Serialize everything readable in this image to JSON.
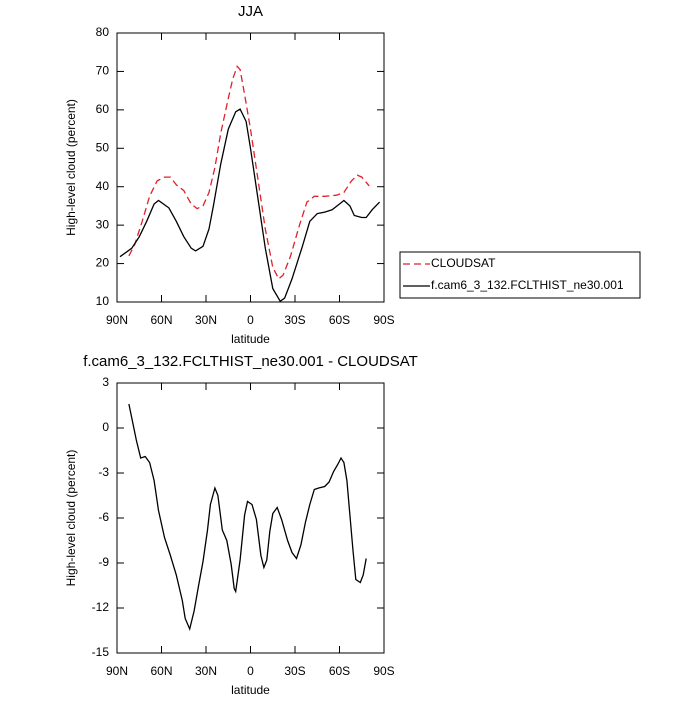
{
  "chart_data": [
    {
      "type": "line",
      "title": "JJA",
      "xlabel": "latitude",
      "ylabel": "High-level cloud (percent)",
      "xlim": [
        90,
        -90
      ],
      "xticks": [
        {
          "value": 90,
          "label": "90N"
        },
        {
          "value": 60,
          "label": "60N"
        },
        {
          "value": 30,
          "label": "30N"
        },
        0,
        {
          "value": -30,
          "label": "30S"
        },
        {
          "value": -60,
          "label": "60S"
        },
        {
          "value": -90,
          "label": "90S"
        }
      ],
      "ylim": [
        10,
        80
      ],
      "yticks": [
        10,
        20,
        30,
        40,
        50,
        60,
        70,
        80
      ],
      "legend": "right",
      "series": [
        {
          "name": "CLOUDSAT",
          "color": "#e0202a",
          "line_style": "dashed",
          "x": [
            82,
            78,
            73,
            68,
            63,
            58,
            54,
            50,
            45,
            40,
            36,
            32,
            28,
            24,
            20,
            15,
            12,
            9,
            7,
            4,
            0,
            -5,
            -10,
            -15,
            -19,
            -22,
            -27,
            -33,
            -38,
            -43,
            -50,
            -58,
            -63,
            -68,
            -72,
            -75,
            -80
          ],
          "values": [
            22,
            25,
            31,
            37.5,
            41.5,
            42.5,
            42.5,
            40.5,
            39,
            35.5,
            34.3,
            35,
            38.5,
            45,
            54,
            63,
            68,
            71.3,
            70.5,
            64,
            55,
            42,
            29,
            19,
            16,
            17,
            22,
            30,
            36,
            37.5,
            37.5,
            37.8,
            38.5,
            41.5,
            43,
            42.5,
            40.2
          ]
        },
        {
          "name": "f.cam6_3_132.FCLTHIST_ne30.001",
          "color": "#000000",
          "line_style": "solid",
          "x": [
            88,
            80,
            75,
            70,
            65,
            62,
            55,
            50,
            45,
            40,
            37,
            32,
            28,
            25,
            20,
            15,
            10,
            7,
            3,
            0,
            -5,
            -10,
            -15,
            -20,
            -23,
            -28,
            -35,
            -40,
            -45,
            -50,
            -55,
            -60,
            -63,
            -67,
            -70,
            -75,
            -78,
            -82,
            -87
          ],
          "values": [
            21.8,
            24,
            27,
            31,
            35.5,
            36.4,
            34.5,
            31,
            27,
            24,
            23.3,
            24.5,
            29,
            35,
            46,
            55,
            59.5,
            60.2,
            57,
            50,
            37,
            24,
            13.5,
            10.2,
            11,
            16,
            24.5,
            31,
            33,
            33.4,
            34,
            35.5,
            36.4,
            35,
            32.5,
            32,
            32,
            34,
            36
          ]
        }
      ]
    },
    {
      "type": "line",
      "title": "f.cam6_3_132.FCLTHIST_ne30.001 - CLOUDSAT",
      "xlabel": "latitude",
      "ylabel": "High-level cloud (percent)",
      "xlim": [
        90,
        -90
      ],
      "xticks": [
        {
          "value": 90,
          "label": "90N"
        },
        {
          "value": 60,
          "label": "60N"
        },
        {
          "value": 30,
          "label": "30N"
        },
        0,
        {
          "value": -30,
          "label": "30S"
        },
        {
          "value": -60,
          "label": "60S"
        },
        {
          "value": -90,
          "label": "90S"
        }
      ],
      "ylim": [
        -15,
        3
      ],
      "yticks": [
        -15,
        -12,
        -9,
        -6,
        -3,
        0,
        3
      ],
      "color": "#000000",
      "x": [
        82,
        77,
        74,
        71,
        68,
        65,
        62,
        58,
        54,
        50,
        46,
        44,
        41,
        38,
        35,
        32,
        29,
        27,
        24,
        22,
        19,
        16,
        13,
        11,
        10,
        7,
        4,
        2,
        -1,
        -4,
        -7,
        -9,
        -11,
        -13,
        -15,
        -18,
        -21,
        -25,
        -28,
        -31,
        -34,
        -37,
        -40,
        -43,
        -46,
        -50,
        -53,
        -56,
        -59,
        -61,
        -63,
        -65,
        -67,
        -69,
        -71,
        -74,
        -76,
        -78
      ],
      "values": [
        1.6,
        -0.8,
        -2,
        -1.9,
        -2.3,
        -3.5,
        -5.5,
        -7.3,
        -8.5,
        -9.8,
        -11.5,
        -12.7,
        -13.4,
        -12.2,
        -10.5,
        -8.9,
        -6.8,
        -5.1,
        -4,
        -4.5,
        -6.8,
        -7.5,
        -9.1,
        -10.7,
        -10.9,
        -8.8,
        -5.8,
        -4.9,
        -5.1,
        -6.1,
        -8.5,
        -9.3,
        -8.8,
        -6.9,
        -5.7,
        -5.3,
        -6.1,
        -7.5,
        -8.3,
        -8.7,
        -7.8,
        -6.3,
        -5.1,
        -4.1,
        -4,
        -3.9,
        -3.6,
        -2.9,
        -2.4,
        -2,
        -2.3,
        -3.5,
        -5.8,
        -8.1,
        -10.1,
        -10.3,
        -9.8,
        -8.7
      ]
    }
  ]
}
